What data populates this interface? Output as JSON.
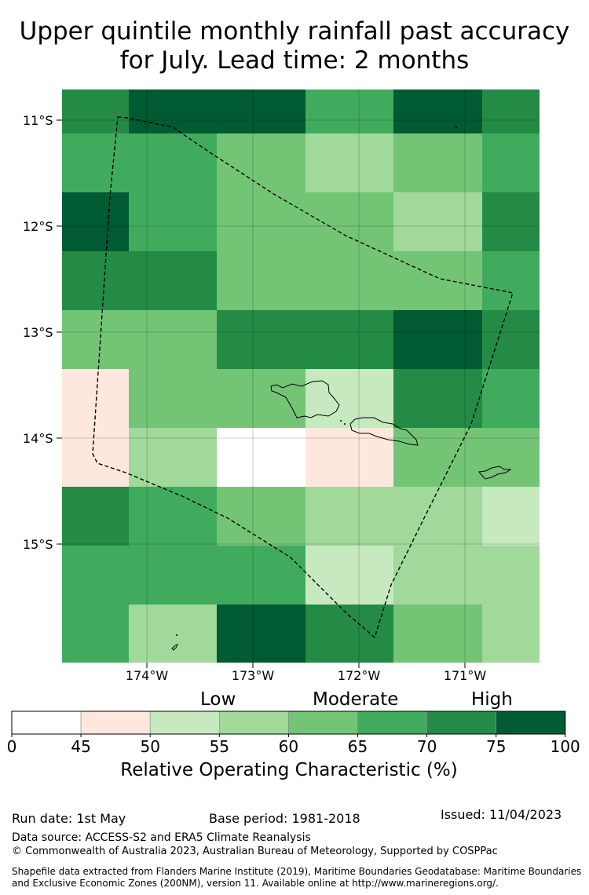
{
  "title_line1": "Upper quintile monthly rainfall past accuracy",
  "title_line2": "for July. Lead time: 2 months",
  "map": {
    "lat_labels": [
      "11°S",
      "12°S",
      "13°S",
      "14°S",
      "15°S"
    ],
    "lon_labels": [
      "174°W",
      "173°W",
      "172°W",
      "171°W"
    ],
    "grid_colors": [
      [
        "#238b45",
        "#005a32",
        "#005a32",
        "#41ab5d",
        "#005a32",
        "#238b45"
      ],
      [
        "#41ab5d",
        "#41ab5d",
        "#74c476",
        "#a1d99b",
        "#74c476",
        "#41ab5d"
      ],
      [
        "#005a32",
        "#41ab5d",
        "#74c476",
        "#74c476",
        "#a1d99b",
        "#238b45"
      ],
      [
        "#238b45",
        "#238b45",
        "#74c476",
        "#74c476",
        "#74c476",
        "#41ab5d"
      ],
      [
        "#74c476",
        "#74c476",
        "#238b45",
        "#238b45",
        "#005a32",
        "#238b45"
      ],
      [
        "#fee8de",
        "#74c476",
        "#74c476",
        "#c7e9c0",
        "#238b45",
        "#41ab5d"
      ],
      [
        "#fee8de",
        "#a1d99b",
        "#ffffff",
        "#fee8de",
        "#74c476",
        "#74c476"
      ],
      [
        "#238b45",
        "#41ab5d",
        "#74c476",
        "#a1d99b",
        "#a1d99b",
        "#c7e9c0"
      ],
      [
        "#41ab5d",
        "#41ab5d",
        "#41ab5d",
        "#c7e9c0",
        "#a1d99b",
        "#a1d99b"
      ],
      [
        "#41ab5d",
        "#a1d99b",
        "#005a32",
        "#238b45",
        "#74c476",
        "#a1d99b"
      ]
    ]
  },
  "colorbar": {
    "category_low": "Low",
    "category_moderate": "Moderate",
    "category_high": "High",
    "ticks": [
      "0",
      "45",
      "50",
      "55",
      "60",
      "65",
      "70",
      "75",
      "100"
    ],
    "colors": [
      "#ffffff",
      "#fee8de",
      "#c7e9c0",
      "#a1d99b",
      "#74c476",
      "#41ab5d",
      "#238b45",
      "#005a32"
    ],
    "title": "Relative Operating Characteristic (%)"
  },
  "footer": {
    "run_date": "Run date: 1st May",
    "base_period": "Base period: 1981-2018",
    "issued": "Issued: 11/04/2023",
    "data_source": "Data source: ACCESS-S2 and ERA5 Climate Reanalysis",
    "copyright": "© Commonwealth of Australia 2023, Australian Bureau of Meteorology, Supported by COSPPac",
    "shapefile_line1": "Shapefile data extracted from Flanders Marine Institute (2019), Maritime Boundaries Geodatabase: Maritime Boundaries",
    "shapefile_line2": "and Exclusive Economic Zones (200NM), version 11. Available online at http://www.marineregions.org/."
  }
}
